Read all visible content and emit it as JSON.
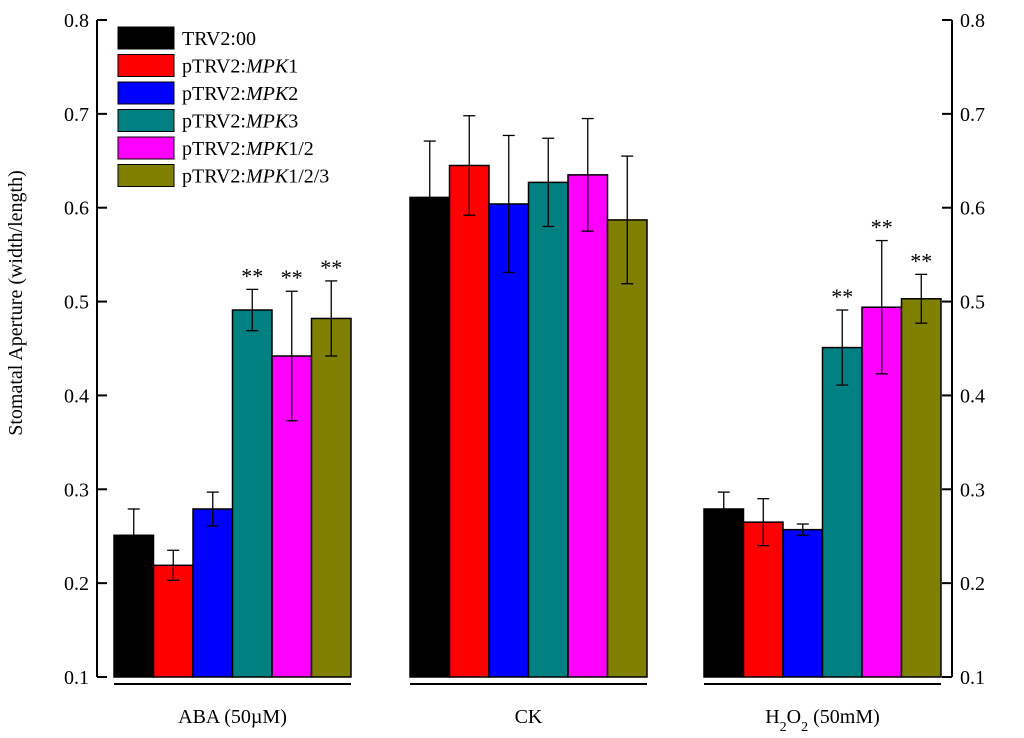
{
  "chart_data": {
    "type": "bar",
    "title": "",
    "xlabel": "",
    "ylabel": "Stomatal Aperture (width/length)",
    "ylim": [
      0.1,
      0.8
    ],
    "yticks": [
      0.1,
      0.2,
      0.3,
      0.4,
      0.5,
      0.6,
      0.7,
      0.8
    ],
    "ytick_labels": [
      "0.1",
      "0.2",
      "0.3",
      "0.4",
      "0.5",
      "0.6",
      "0.7",
      "0.8"
    ],
    "categories": [
      {
        "name": "ABA (50µM)",
        "prefix": "ABA  (50µM)",
        "parts": []
      },
      {
        "name": "CK",
        "prefix": "CK",
        "parts": []
      },
      {
        "name": "H2O2 (50mM)",
        "prefix": "H",
        "parts": [
          {
            "t": "2",
            "sub": true
          },
          {
            "t": "O",
            "sub": false
          },
          {
            "t": "2",
            "sub": true
          },
          {
            "t": "  (50mM)",
            "sub": false
          }
        ]
      }
    ],
    "legend_position": "top-left",
    "series": [
      {
        "name": "TRV2:00",
        "legend_prefix": "TRV2:00",
        "legend_italic": "",
        "legend_suffix": "",
        "color": "#000000",
        "values": [
          0.251,
          0.611,
          0.279
        ],
        "errors": [
          0.028,
          0.06,
          0.018
        ],
        "sig": [
          "",
          "",
          ""
        ]
      },
      {
        "name": "pTRV2:MPK1",
        "legend_prefix": "pTRV2:",
        "legend_italic": "MPK",
        "legend_suffix": "1",
        "color": "#ff0000",
        "values": [
          0.219,
          0.645,
          0.265
        ],
        "errors": [
          0.016,
          0.053,
          0.025
        ],
        "sig": [
          "",
          "",
          ""
        ]
      },
      {
        "name": "pTRV2:MPK2",
        "legend_prefix": "pTRV2:",
        "legend_italic": "MPK",
        "legend_suffix": "2",
        "color": "#0000ff",
        "values": [
          0.279,
          0.604,
          0.257
        ],
        "errors": [
          0.018,
          0.073,
          0.006
        ],
        "sig": [
          "",
          "",
          ""
        ]
      },
      {
        "name": "pTRV2:MPK3",
        "legend_prefix": "pTRV2:",
        "legend_italic": "MPK",
        "legend_suffix": "3",
        "color": "#008080",
        "values": [
          0.491,
          0.627,
          0.451
        ],
        "errors": [
          0.022,
          0.047,
          0.04
        ],
        "sig": [
          "**",
          "",
          "**"
        ]
      },
      {
        "name": "pTRV2:MPK1/2",
        "legend_prefix": "pTRV2:",
        "legend_italic": "MPK",
        "legend_suffix": "1/2",
        "color": "#ff00ff",
        "values": [
          0.442,
          0.635,
          0.494
        ],
        "errors": [
          0.069,
          0.06,
          0.071
        ],
        "sig": [
          "**",
          "",
          "**"
        ]
      },
      {
        "name": "pTRV2:MPK1/2/3",
        "legend_prefix": "pTRV2:",
        "legend_italic": "MPK",
        "legend_suffix": "1/2/3",
        "color": "#808000",
        "values": [
          0.482,
          0.587,
          0.503
        ],
        "errors": [
          0.04,
          0.068,
          0.026
        ],
        "sig": [
          "**",
          "",
          "**"
        ]
      }
    ]
  }
}
